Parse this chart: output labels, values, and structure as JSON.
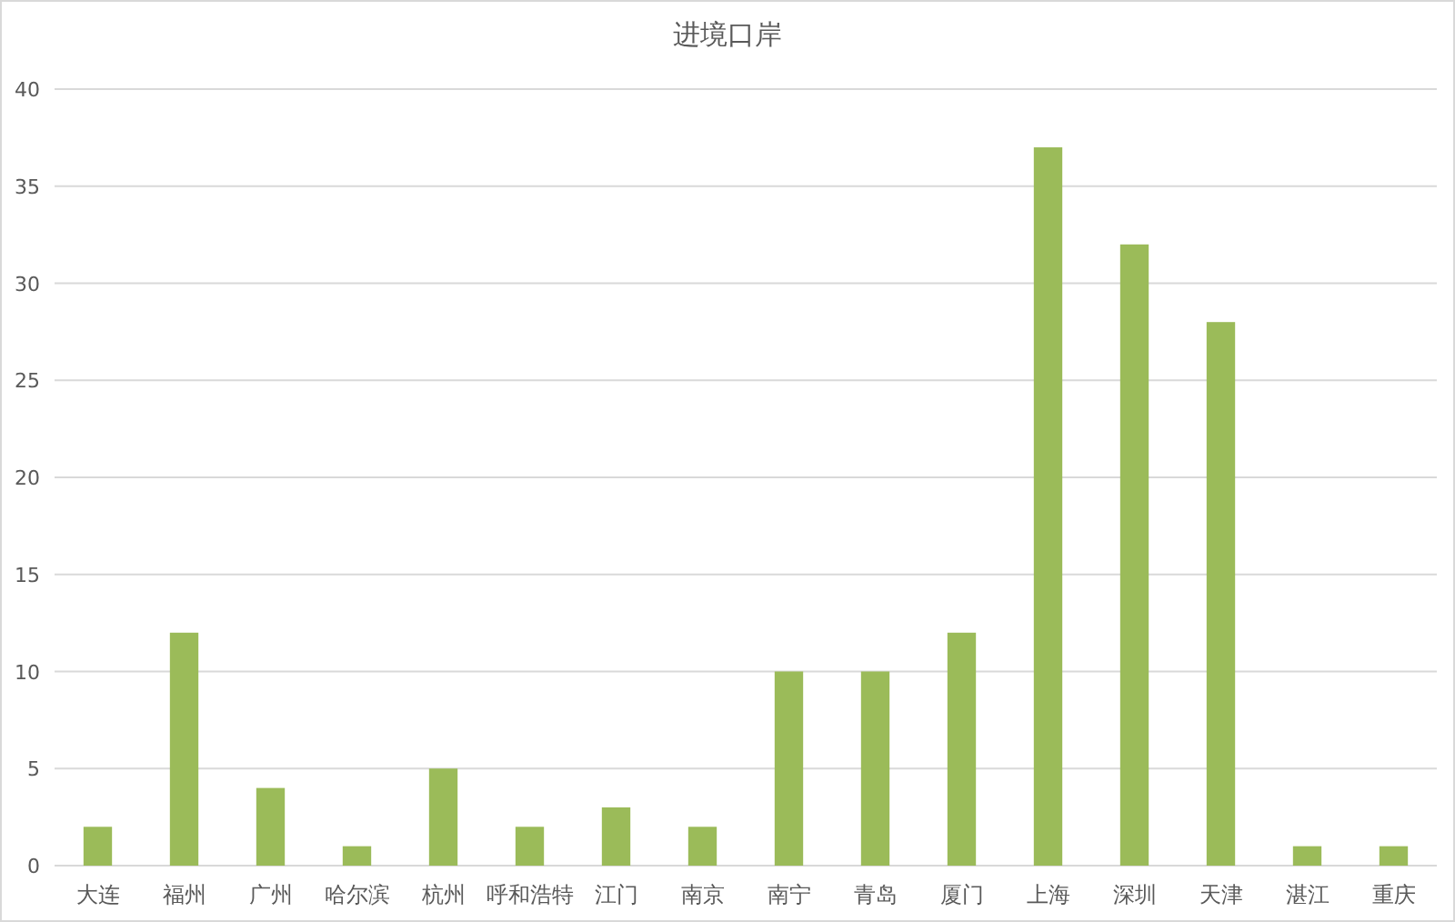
{
  "chart_data": {
    "type": "bar",
    "title": "进境口岸",
    "categories": [
      "大连",
      "福州",
      "广州",
      "哈尔滨",
      "杭州",
      "呼和浩特",
      "江门",
      "南京",
      "南宁",
      "青岛",
      "厦门",
      "上海",
      "深圳",
      "天津",
      "湛江",
      "重庆"
    ],
    "values": [
      2,
      12,
      4,
      1,
      5,
      2,
      3,
      2,
      10,
      10,
      12,
      37,
      32,
      28,
      1,
      1
    ],
    "color": "#9bbb59",
    "ylim": [
      0,
      40
    ],
    "yticks": [
      0,
      5,
      10,
      15,
      20,
      25,
      30,
      35,
      40
    ],
    "grid": "y"
  }
}
